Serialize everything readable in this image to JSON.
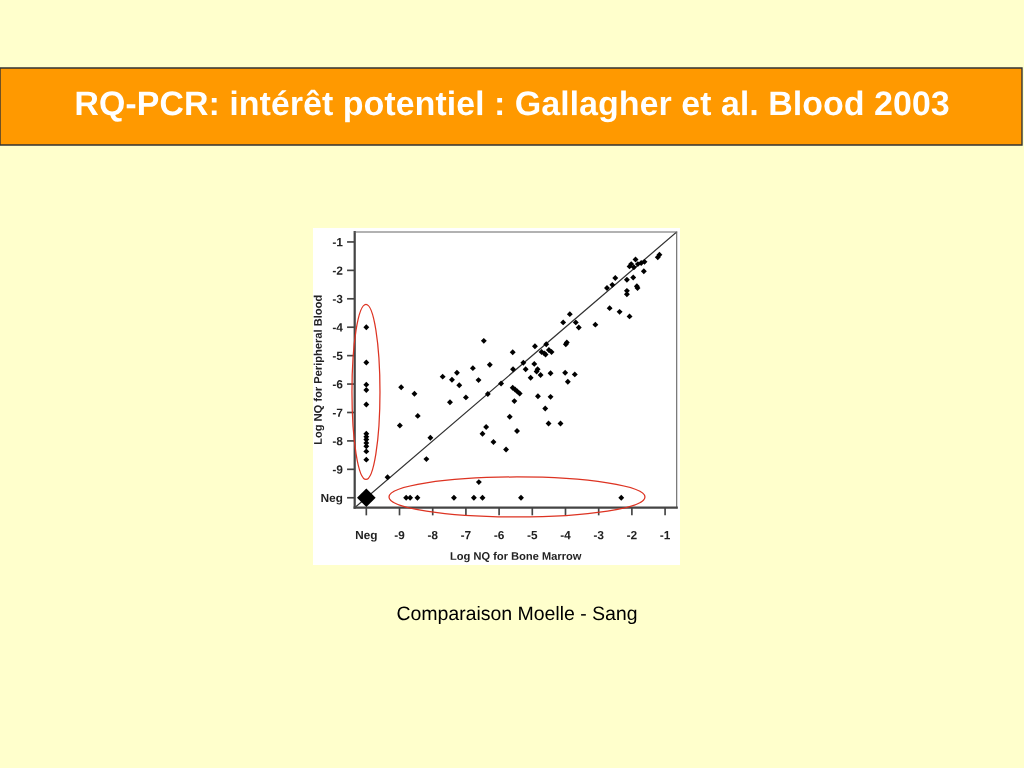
{
  "chart_data": {
    "type": "bubble",
    "title": "RQ-PCR: intérêt potentiel : Gallagher et al. Blood 2003",
    "xlabel": "Log NQ for Bone Marrow",
    "ylabel": "Log NQ for Peripheral Blood",
    "annotations": [
      "Comparaison Moelle - Sang"
    ],
    "xlim": [
      -10.35,
      -0.65
    ],
    "ylim": [
      -10.35,
      -0.65
    ],
    "xticks": [
      {
        "value": -10,
        "label": "Neg"
      },
      -9,
      -8,
      -7,
      -6,
      -5,
      -4,
      -3,
      -2,
      -1
    ],
    "yticks": [
      {
        "value": -10,
        "label": "Neg"
      },
      -9,
      -8,
      -7,
      -6,
      -5,
      -4,
      -3,
      -2,
      -1
    ],
    "series": [
      {
        "color": "#000000",
        "marker": "diamond",
        "x": [
          -10,
          -10,
          -10,
          -10,
          -10,
          -10,
          -10,
          -10,
          -10,
          -10,
          -10,
          -10,
          -10,
          -8.8,
          -8.68,
          -8.46,
          -7.36,
          -6.76,
          -6.5,
          -5.34,
          -2.32,
          -9.36,
          -6.61,
          -6.46,
          -8.95,
          -8.55,
          -7.7,
          -7.27,
          -7.42,
          -7.2,
          -6.79,
          -6.28,
          -6.62,
          -7.0,
          -7.48,
          -6.34,
          -5.94,
          -5.59,
          -5.58,
          -5.27,
          -5.2,
          -4.92,
          -4.94,
          -4.58,
          -4.72,
          -4.64,
          -4.5,
          -4.42,
          -4.6,
          -4.84,
          -4.87,
          -5.05,
          -4.75,
          -4.45,
          -4.01,
          -3.93,
          -3.72,
          -3.99,
          -3.96,
          -5.59,
          -5.52,
          -5.45,
          -5.38,
          -5.54,
          -4.83,
          -4.45,
          -4.61,
          -4.51,
          -4.15,
          -5.68,
          -5.46,
          -6.39,
          -6.5,
          -6.17,
          -5.79,
          -8.99,
          -8.45,
          -8.07,
          -8.19,
          -4.07,
          -3.87,
          -3.69,
          -3.6,
          -3.1,
          -2.67,
          -2.37,
          -2.07,
          -2.75,
          -2.59,
          -2.5,
          -2.15,
          -2.15,
          -2.15,
          -1.96,
          -1.85,
          -1.83,
          -1.64,
          -2.07,
          -2.02,
          -1.89,
          -1.82,
          -1.72,
          -1.62,
          -1.94,
          -1.22,
          -1.17
        ],
        "values": [
          -10,
          -4.0,
          -5.24,
          -6.02,
          -6.21,
          -6.72,
          -7.75,
          -7.85,
          -7.95,
          -8.07,
          -8.19,
          -8.37,
          -8.66,
          -10,
          -10,
          -10,
          -10,
          -10,
          -10,
          -10,
          -10,
          -9.28,
          -9.45,
          -4.48,
          -6.11,
          -6.34,
          -5.74,
          -5.6,
          -5.85,
          -6.04,
          -5.44,
          -5.32,
          -5.86,
          -6.47,
          -6.64,
          -6.35,
          -5.98,
          -4.88,
          -5.48,
          -5.25,
          -5.48,
          -4.67,
          -5.29,
          -4.6,
          -4.87,
          -4.92,
          -4.8,
          -4.87,
          -4.96,
          -5.48,
          -5.56,
          -5.78,
          -5.68,
          -5.62,
          -5.6,
          -5.92,
          -5.66,
          -4.6,
          -4.54,
          -6.13,
          -6.19,
          -6.26,
          -6.33,
          -6.6,
          -6.43,
          -6.45,
          -6.86,
          -7.39,
          -7.39,
          -7.15,
          -7.65,
          -7.51,
          -7.75,
          -8.04,
          -8.3,
          -7.46,
          -7.12,
          -7.89,
          -8.64,
          -3.83,
          -3.54,
          -3.83,
          -4.01,
          -3.91,
          -3.33,
          -3.46,
          -3.62,
          -2.62,
          -2.51,
          -2.27,
          -2.33,
          -2.72,
          -2.84,
          -2.25,
          -2.56,
          -2.62,
          -2.03,
          -1.86,
          -1.78,
          -1.62,
          -1.78,
          -1.74,
          -1.7,
          -1.89,
          -1.54,
          -1.45
        ],
        "sizes": [
          1,
          0.1,
          0.1,
          0.1,
          0.1,
          0.1,
          0.1,
          0.1,
          0.1,
          0.1,
          0.1,
          0.1,
          0.1,
          0.1,
          0.1,
          0.1,
          0.1,
          0.1,
          0.1,
          0.1,
          0.1,
          0.1,
          0.1,
          0.1,
          0.1,
          0.1,
          0.1,
          0.1,
          0.1,
          0.1,
          0.1,
          0.1,
          0.1,
          0.1,
          0.1,
          0.1,
          0.1,
          0.1,
          0.1,
          0.1,
          0.1,
          0.1,
          0.1,
          0.1,
          0.1,
          0.1,
          0.1,
          0.1,
          0.1,
          0.1,
          0.1,
          0.1,
          0.1,
          0.1,
          0.1,
          0.1,
          0.1,
          0.1,
          0.1,
          0.1,
          0.1,
          0.1,
          0.1,
          0.1,
          0.1,
          0.1,
          0.1,
          0.1,
          0.1,
          0.1,
          0.1,
          0.1,
          0.1,
          0.1,
          0.1,
          0.1,
          0.1,
          0.1,
          0.1,
          0.1,
          0.1,
          0.1,
          0.1,
          0.1,
          0.1,
          0.1,
          0.1,
          0.1,
          0.1,
          0.1,
          0.1,
          0.1,
          0.1,
          0.1,
          0.1,
          0.1,
          0.1,
          0.1,
          0.1,
          0.1,
          0.1,
          0.1,
          0.1,
          0.1,
          0.1,
          0.1
        ]
      },
      {
        "type": "line",
        "color": "#333333",
        "x": [
          -10.35,
          -0.65
        ],
        "values": [
          -10.35,
          -0.65
        ]
      }
    ]
  }
}
